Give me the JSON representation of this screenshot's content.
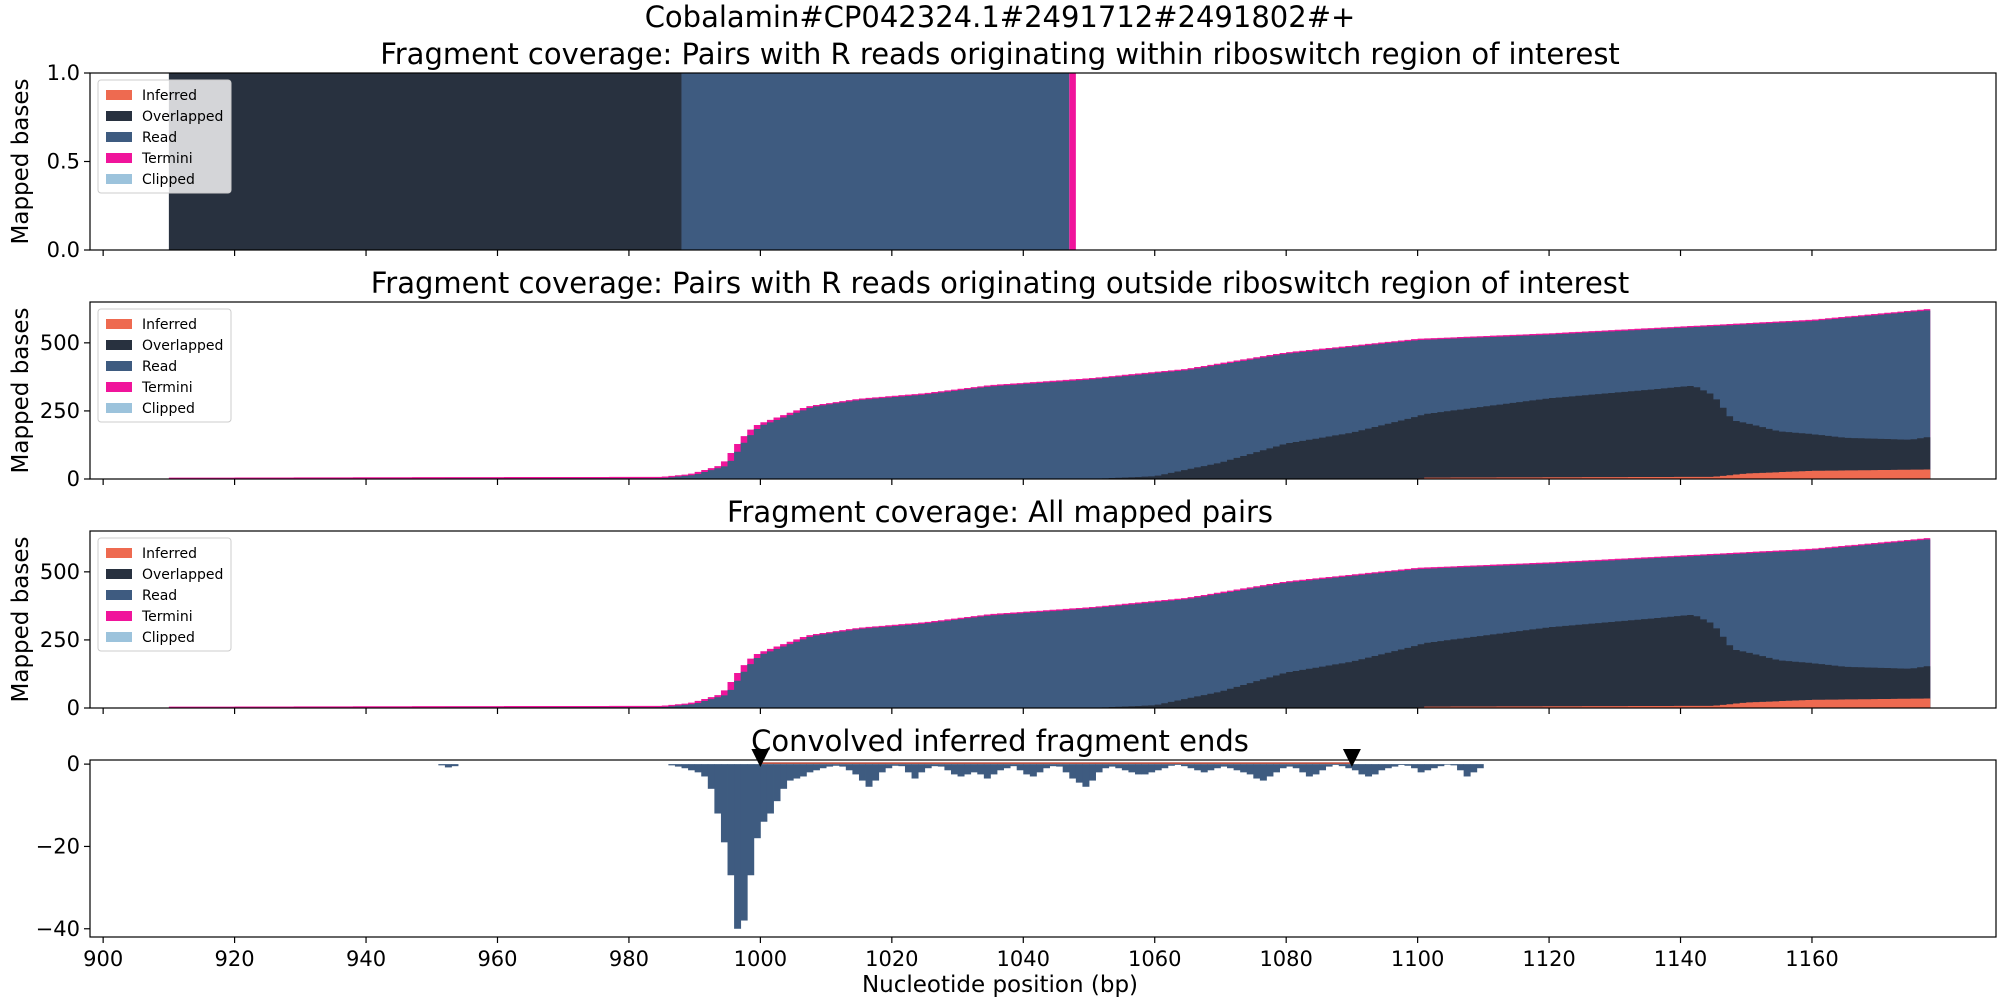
{
  "figure": {
    "suptitle": "Cobalamin#CP042324.1#2491712#2491802#+",
    "xlabel": "Nucleotide position (bp)"
  },
  "colors": {
    "Inferred": "#ee6a50",
    "Overlapped": "#28313f",
    "Read": "#3e5b80",
    "Termini": "#f0149b",
    "Clipped": "#9cc3dc",
    "marker": "#000000",
    "guide_line": "#b33b2a"
  },
  "chart_data": [
    {
      "type": "area",
      "title": "Fragment coverage: Pairs with R reads originating within riboswitch region of interest",
      "ylabel": "Mapped bases",
      "xlim": [
        898,
        1188
      ],
      "ylim": [
        0,
        1
      ],
      "yticks": [
        "0.0",
        "0.5",
        "1.0"
      ],
      "xticks": [
        900,
        920,
        940,
        960,
        980,
        1000,
        1020,
        1040,
        1060,
        1080,
        1100,
        1120,
        1140,
        1160
      ],
      "legend": [
        "Inferred",
        "Overlapped",
        "Read",
        "Termini",
        "Clipped"
      ],
      "legend_position": "upper-left",
      "layers": [
        {
          "name": "Overlapped",
          "segments": [
            [
              910,
              988,
              1
            ]
          ]
        },
        {
          "name": "Read",
          "segments": [
            [
              988,
              1047,
              1
            ]
          ]
        },
        {
          "name": "Termini",
          "segments": [
            [
              1047,
              1048,
              1
            ]
          ]
        }
      ]
    },
    {
      "type": "area",
      "title": "Fragment coverage: Pairs with R reads originating outside riboswitch region of interest",
      "ylabel": "Mapped bases",
      "xlim": [
        898,
        1188
      ],
      "ylim": [
        0,
        650
      ],
      "yticks": [
        "0",
        "250",
        "500"
      ],
      "xticks": [
        900,
        920,
        940,
        960,
        980,
        1000,
        1020,
        1040,
        1060,
        1080,
        1100,
        1120,
        1140,
        1160
      ],
      "legend": [
        "Inferred",
        "Overlapped",
        "Read",
        "Termini",
        "Clipped"
      ],
      "legend_position": "upper-left",
      "profiles": {
        "total": [
          [
            910,
            0
          ],
          [
            950,
            2
          ],
          [
            985,
            3
          ],
          [
            990,
            15
          ],
          [
            995,
            50
          ],
          [
            998,
            150
          ],
          [
            1000,
            195
          ],
          [
            1004,
            230
          ],
          [
            1008,
            265
          ],
          [
            1015,
            290
          ],
          [
            1025,
            310
          ],
          [
            1035,
            340
          ],
          [
            1050,
            365
          ],
          [
            1065,
            400
          ],
          [
            1080,
            460
          ],
          [
            1100,
            510
          ],
          [
            1120,
            530
          ],
          [
            1140,
            555
          ],
          [
            1160,
            580
          ],
          [
            1178,
            620
          ]
        ],
        "overlapped": [
          [
            910,
            0
          ],
          [
            1050,
            0
          ],
          [
            1060,
            10
          ],
          [
            1070,
            60
          ],
          [
            1080,
            130
          ],
          [
            1090,
            170
          ],
          [
            1100,
            230
          ],
          [
            1110,
            260
          ],
          [
            1120,
            290
          ],
          [
            1135,
            320
          ],
          [
            1142,
            335
          ],
          [
            1145,
            300
          ],
          [
            1148,
            200
          ],
          [
            1155,
            150
          ],
          [
            1165,
            120
          ],
          [
            1175,
            110
          ],
          [
            1178,
            120
          ]
        ],
        "inferred": [
          [
            910,
            0
          ],
          [
            1100,
            0
          ],
          [
            1101,
            5
          ],
          [
            1145,
            8
          ],
          [
            1150,
            20
          ],
          [
            1160,
            30
          ],
          [
            1178,
            35
          ]
        ],
        "termini_height": 8
      }
    },
    {
      "type": "area",
      "title": "Fragment coverage: All mapped pairs",
      "ylabel": "Mapped bases",
      "xlim": [
        898,
        1188
      ],
      "ylim": [
        0,
        650
      ],
      "yticks": [
        "0",
        "250",
        "500"
      ],
      "xticks": [
        900,
        920,
        940,
        960,
        980,
        1000,
        1020,
        1040,
        1060,
        1080,
        1100,
        1120,
        1140,
        1160
      ],
      "legend": [
        "Inferred",
        "Overlapped",
        "Read",
        "Termini",
        "Clipped"
      ],
      "legend_position": "upper-left",
      "profiles": {
        "total": [
          [
            910,
            0
          ],
          [
            950,
            2
          ],
          [
            985,
            3
          ],
          [
            990,
            15
          ],
          [
            995,
            50
          ],
          [
            998,
            150
          ],
          [
            1000,
            195
          ],
          [
            1004,
            230
          ],
          [
            1008,
            265
          ],
          [
            1015,
            290
          ],
          [
            1025,
            310
          ],
          [
            1035,
            340
          ],
          [
            1050,
            365
          ],
          [
            1065,
            400
          ],
          [
            1080,
            460
          ],
          [
            1100,
            510
          ],
          [
            1120,
            530
          ],
          [
            1140,
            555
          ],
          [
            1160,
            580
          ],
          [
            1178,
            620
          ]
        ],
        "overlapped": [
          [
            910,
            0
          ],
          [
            1050,
            0
          ],
          [
            1060,
            10
          ],
          [
            1070,
            60
          ],
          [
            1080,
            130
          ],
          [
            1090,
            170
          ],
          [
            1100,
            230
          ],
          [
            1110,
            260
          ],
          [
            1120,
            290
          ],
          [
            1135,
            320
          ],
          [
            1142,
            335
          ],
          [
            1145,
            300
          ],
          [
            1148,
            200
          ],
          [
            1155,
            150
          ],
          [
            1165,
            120
          ],
          [
            1175,
            110
          ],
          [
            1178,
            120
          ]
        ],
        "inferred": [
          [
            910,
            0
          ],
          [
            1100,
            0
          ],
          [
            1101,
            5
          ],
          [
            1145,
            8
          ],
          [
            1150,
            20
          ],
          [
            1160,
            30
          ],
          [
            1178,
            35
          ]
        ],
        "termini_height": 8
      }
    },
    {
      "type": "bar",
      "title": "Convolved inferred fragment ends",
      "xlabel": "Nucleotide position (bp)",
      "xlim": [
        898,
        1188
      ],
      "ylim": [
        -42,
        1
      ],
      "yticks": [
        "0",
        "−20",
        "−40"
      ],
      "xticks": [
        900,
        920,
        940,
        960,
        980,
        1000,
        1020,
        1040,
        1060,
        1080,
        1100,
        1120,
        1140,
        1160
      ],
      "markers": [
        1000,
        1090
      ],
      "x_start": 986,
      "values": [
        -0.3,
        -0.6,
        -1,
        -1.5,
        -2,
        -3,
        -6,
        -12,
        -19,
        -27,
        -40,
        -38,
        -27,
        -18,
        -14,
        -12,
        -9,
        -6,
        -4,
        -3.5,
        -3,
        -2,
        -1.5,
        -1,
        -0.6,
        -0.4,
        -0.6,
        -1.5,
        -2.5,
        -4,
        -5.5,
        -4,
        -2,
        -1,
        -0.4,
        -0.5,
        -2,
        -3.5,
        -2,
        -1,
        -0.5,
        -0.6,
        -1.5,
        -2.5,
        -3,
        -2.5,
        -2,
        -2.5,
        -3.5,
        -2.5,
        -1.5,
        -1,
        -0.5,
        -1.5,
        -2.5,
        -3,
        -2,
        -1,
        -0.5,
        -0.6,
        -2,
        -3.5,
        -4.5,
        -5.5,
        -4,
        -2,
        -1,
        -0.6,
        -1,
        -1.5,
        -2,
        -2.5,
        -2.5,
        -2,
        -1.5,
        -1,
        -0.4,
        -0.2,
        -0.5,
        -1,
        -1.5,
        -2,
        -1.5,
        -1,
        -0.6,
        -1,
        -1.5,
        -2,
        -2.5,
        -3.5,
        -4,
        -3,
        -2,
        -1,
        -0.6,
        -1,
        -2,
        -3,
        -2.5,
        -1.5,
        -0.6,
        -0.2,
        -0.5,
        -1,
        -1.5,
        -2.5,
        -3,
        -2.5,
        -1.5,
        -1,
        -0.6,
        -0.2,
        -0.4,
        -1,
        -2,
        -1.5,
        -1,
        -0.5,
        -0.1,
        -0.3,
        -1.5,
        -3,
        -2,
        -1
      ],
      "isolated": [
        [
          951,
          -0.3
        ],
        [
          952,
          -0.8
        ],
        [
          953,
          -0.5
        ]
      ]
    }
  ]
}
